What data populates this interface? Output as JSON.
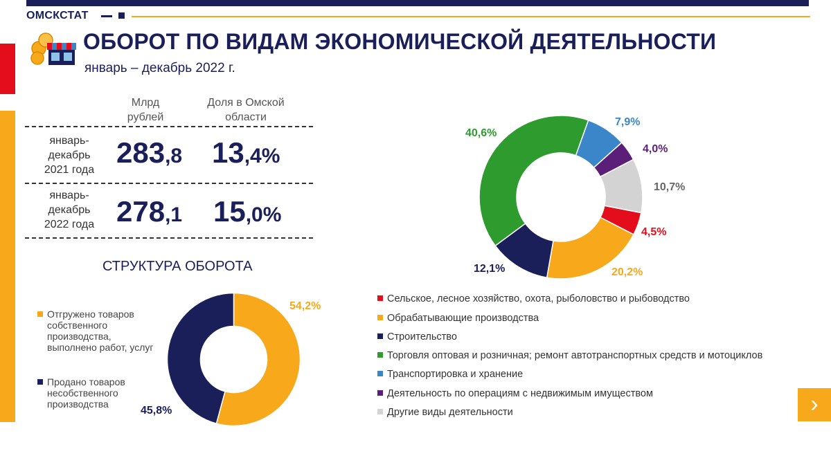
{
  "header": {
    "brand": "ОМСКСТАТ",
    "title": "ОБОРОТ ПО ВИДАМ ЭКОНОМИЧЕСКОЙ ДЕЯТЕЛЬНОСТИ",
    "subtitle": "январь – декабрь 2022 г."
  },
  "summary": {
    "col_value_header": "Млрд рублей",
    "col_value_header_l1": "Млрд",
    "col_value_header_l2": "рублей",
    "col_share_header": "Доля в Омской области",
    "col_share_header_l1": "Доля в Омской",
    "col_share_header_l2": "области",
    "rows": [
      {
        "label": "январь-декабрь 2021 года",
        "label_l1": "январь-",
        "label_l2": "декабрь",
        "label_l3": "2021 года",
        "value_int": "283",
        "value_dec": ",8",
        "share_int": "13",
        "share_dec": ",4%"
      },
      {
        "label": "январь-декабрь 2022 года",
        "label_l1": "январь-",
        "label_l2": "декабрь",
        "label_l3": "2022 года",
        "value_int": "278",
        "value_dec": ",1",
        "share_int": "15",
        "share_dec": ",0%"
      }
    ]
  },
  "structure": {
    "title": "СТРУКТУРА ОБОРОТА",
    "legend": [
      "Отгружено товаров собственного производства, выполнено работ, услуг",
      "Продано товаров несобственного производства"
    ]
  },
  "chart_data": [
    {
      "type": "pie",
      "title": "СТРУКТУРА ОБОРОТА",
      "donut": true,
      "categories": [
        "Отгружено товаров собственного производства, выполнено работ, услуг",
        "Продано товаров несобственного производства"
      ],
      "values": [
        54.2,
        45.8
      ],
      "labels": [
        "54,2%",
        "45,8%"
      ],
      "colors": [
        "#f7a81b",
        "#1a1f5a"
      ]
    },
    {
      "type": "pie",
      "title": "Оборот по видам экономической деятельности",
      "donut": true,
      "categories": [
        "Сельское, лесное хозяйство, охота, рыболовство и рыбоводство",
        "Обрабатывающие производства",
        "Строительство",
        "Торговля оптовая и розничная; ремонт автотранспортных средств и мотоциклов",
        "Транспортировка и хранение",
        "Деятельность по операциям с недвижимым имуществом",
        "Другие виды деятельности"
      ],
      "values": [
        4.5,
        20.2,
        12.1,
        40.6,
        7.9,
        4.0,
        10.7
      ],
      "labels": [
        "4,5%",
        "20,2%",
        "12,1%",
        "40,6%",
        "7,9%",
        "4,0%",
        "10,7%"
      ],
      "colors": [
        "#e30d1b",
        "#f7a81b",
        "#1a1f5a",
        "#2e9b2e",
        "#3a86c8",
        "#5b1f7a",
        "#d3d3d3"
      ],
      "legend_position": "bottom"
    }
  ]
}
